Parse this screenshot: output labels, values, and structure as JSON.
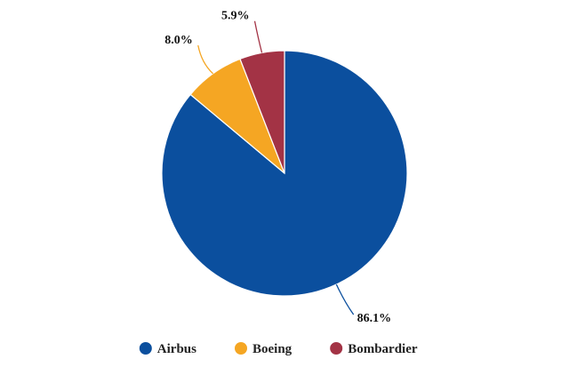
{
  "chart_data": {
    "type": "pie",
    "title": "",
    "slices": [
      {
        "name": "Airbus",
        "value": 86.1,
        "label": "86.1%",
        "color": "#0b4f9e"
      },
      {
        "name": "Boeing",
        "value": 8.0,
        "label": "8.0%",
        "color": "#f5a623"
      },
      {
        "name": "Bombardier",
        "value": 5.9,
        "label": "5.9%",
        "color": "#a33345"
      }
    ],
    "legend": {
      "placement": "bottom",
      "entries": [
        "Airbus",
        "Boeing",
        "Bombardier"
      ]
    },
    "start_angle": "top, clockwise"
  }
}
